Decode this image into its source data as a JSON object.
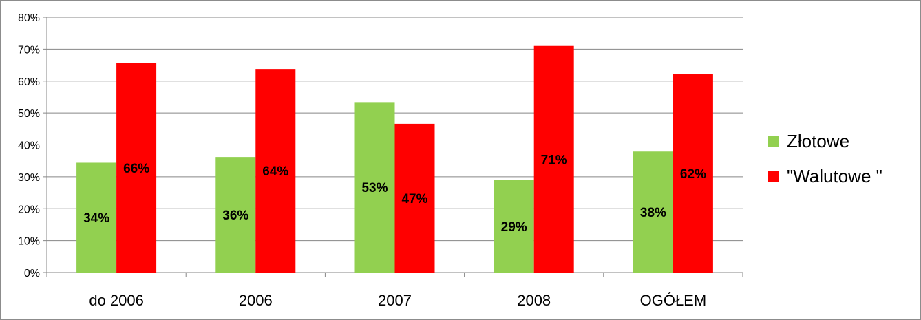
{
  "chart_data": {
    "type": "bar",
    "categories": [
      "do 2006",
      "2006",
      "2007",
      "2008",
      "OGÓŁEM"
    ],
    "series": [
      {
        "name": "Złotowe",
        "color": "#92d050",
        "values": [
          34.4,
          36.2,
          53.4,
          29.0,
          37.9
        ],
        "labels": [
          "34%",
          "36%",
          "53%",
          "29%",
          "38%"
        ]
      },
      {
        "name": "\"Walutowe \"",
        "color": "#ff0000",
        "values": [
          65.6,
          63.8,
          46.6,
          71.0,
          62.1
        ],
        "labels": [
          "66%",
          "64%",
          "47%",
          "71%",
          "62%"
        ]
      }
    ],
    "ylim": [
      0,
      80
    ],
    "yticks": [
      "0%",
      "10%",
      "20%",
      "30%",
      "40%",
      "50%",
      "60%",
      "70%",
      "80%"
    ],
    "grid": true,
    "legend_position": "right",
    "title": "",
    "xlabel": "",
    "ylabel": ""
  }
}
